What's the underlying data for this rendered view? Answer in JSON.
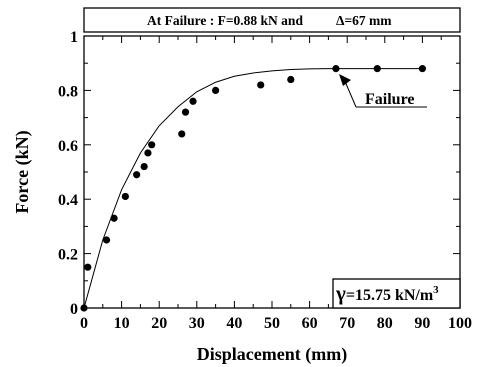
{
  "chart_data": {
    "type": "scatter",
    "title": "",
    "xlabel": "Displacement (mm)",
    "ylabel": "Force (kN)",
    "xlim": [
      0,
      100
    ],
    "ylim": [
      0,
      1
    ],
    "x_ticks": [
      "0",
      "10",
      "20",
      "30",
      "40",
      "50",
      "60",
      "70",
      "80",
      "90",
      "100"
    ],
    "y_ticks": [
      "0",
      "0.2",
      "0.4",
      "0.6",
      "0.8",
      "1"
    ],
    "grid": false,
    "series": [
      {
        "kind": "points",
        "marker": "filled-circle",
        "points": [
          [
            0,
            0
          ],
          [
            1,
            0.15
          ],
          [
            6,
            0.25
          ],
          [
            8,
            0.33
          ],
          [
            11,
            0.41
          ],
          [
            14,
            0.49
          ],
          [
            16,
            0.52
          ],
          [
            17,
            0.57
          ],
          [
            18,
            0.6
          ],
          [
            26,
            0.64
          ],
          [
            27,
            0.72
          ],
          [
            29,
            0.76
          ],
          [
            35,
            0.8
          ],
          [
            47,
            0.82
          ],
          [
            55,
            0.84
          ],
          [
            67,
            0.88
          ],
          [
            78,
            0.88
          ],
          [
            90,
            0.88
          ]
        ]
      },
      {
        "kind": "curve",
        "points": [
          [
            0,
            0
          ],
          [
            5,
            0.25
          ],
          [
            10,
            0.435
          ],
          [
            15,
            0.57
          ],
          [
            20,
            0.67
          ],
          [
            25,
            0.74
          ],
          [
            30,
            0.795
          ],
          [
            35,
            0.83
          ],
          [
            40,
            0.852
          ],
          [
            45,
            0.864
          ],
          [
            50,
            0.872
          ],
          [
            55,
            0.877
          ],
          [
            60,
            0.879
          ],
          [
            65,
            0.88
          ],
          [
            70,
            0.88
          ],
          [
            80,
            0.88
          ],
          [
            90,
            0.88
          ]
        ]
      }
    ],
    "annotations": {
      "header": "At Failure : F=0.88 kN  and",
      "header_delta": "Δ=67 mm",
      "failure_label": "Failure",
      "failure_point": [
        67,
        0.88
      ],
      "gamma_symbol": "γ",
      "gamma_text": "=15.75 kN/m",
      "gamma_exp": "3"
    }
  }
}
